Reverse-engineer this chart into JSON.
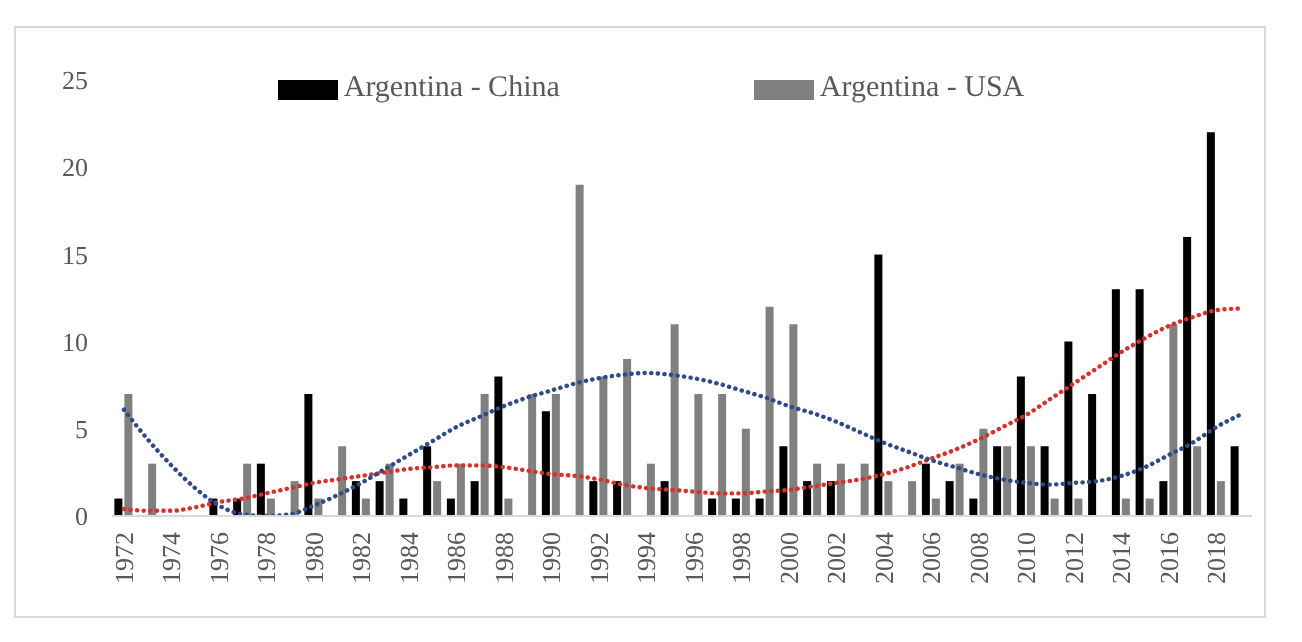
{
  "chart_data": {
    "type": "bar",
    "categories": [
      "1972",
      null,
      "1974",
      null,
      "1976",
      null,
      "1978",
      null,
      "1980",
      null,
      "1982",
      null,
      "1984",
      null,
      "1986",
      null,
      "1988",
      null,
      "1990",
      null,
      "1992",
      null,
      "1994",
      null,
      "1996",
      null,
      "1998",
      null,
      "2000",
      null,
      "2002",
      null,
      "2004",
      null,
      "2006",
      null,
      "2008",
      null,
      "2010",
      null,
      "2012",
      null,
      "2014",
      null,
      "2016",
      null,
      "2018",
      null
    ],
    "ylim": [
      0,
      25
    ],
    "yticks": [
      0,
      5,
      10,
      15,
      20,
      25
    ],
    "legend": "top",
    "series": [
      {
        "name": "Argentina - China",
        "color": "#000000",
        "values": [
          1,
          0,
          0,
          0,
          1,
          1,
          3,
          0,
          7,
          0,
          2,
          2,
          1,
          4,
          1,
          2,
          8,
          0,
          6,
          0,
          2,
          2,
          0,
          2,
          0,
          1,
          1,
          1,
          4,
          2,
          2,
          0,
          15,
          0,
          3,
          2,
          1,
          4,
          8,
          4,
          10,
          7,
          13,
          13,
          2,
          16,
          22,
          4
        ]
      },
      {
        "name": "Argentina - USA",
        "color": "#808080",
        "values": [
          7,
          3,
          0,
          0,
          0,
          3,
          1,
          2,
          1,
          4,
          1,
          3,
          0,
          2,
          3,
          7,
          1,
          7,
          7,
          19,
          8,
          9,
          3,
          11,
          7,
          7,
          5,
          12,
          11,
          3,
          3,
          3,
          2,
          2,
          1,
          3,
          5,
          4,
          4,
          1,
          1,
          0,
          1,
          1,
          11,
          4,
          2,
          0
        ]
      },
      {
        "type": "line",
        "color": "#d9302b",
        "line_style": "dotted",
        "values": [
          0.4,
          0.3,
          0.3,
          0.5,
          0.8,
          1.0,
          1.3,
          1.6,
          1.9,
          2.1,
          2.3,
          2.5,
          2.7,
          2.8,
          2.9,
          2.9,
          2.8,
          2.6,
          2.4,
          2.3,
          2.1,
          1.8,
          1.6,
          1.5,
          1.4,
          1.3,
          1.3,
          1.4,
          1.5,
          1.7,
          1.9,
          2.1,
          2.4,
          2.8,
          3.3,
          3.8,
          4.4,
          5.1,
          5.8,
          6.7,
          7.6,
          8.5,
          9.4,
          10.2,
          10.9,
          11.4,
          11.8,
          11.9
        ]
      },
      {
        "type": "line",
        "color": "#2e4a87",
        "line_style": "dotted",
        "values": [
          6.1,
          4.4,
          2.9,
          1.6,
          0.6,
          0.1,
          0,
          0.1,
          0.6,
          1.2,
          1.9,
          2.7,
          3.5,
          4.3,
          5.1,
          5.7,
          6.3,
          6.8,
          7.2,
          7.6,
          7.9,
          8.1,
          8.2,
          8.1,
          7.9,
          7.6,
          7.2,
          6.8,
          6.3,
          5.9,
          5.4,
          4.8,
          4.2,
          3.7,
          3.2,
          2.8,
          2.4,
          2.1,
          1.9,
          1.8,
          1.9,
          2.0,
          2.3,
          2.8,
          3.5,
          4.2,
          5.1,
          5.8
        ]
      }
    ]
  }
}
